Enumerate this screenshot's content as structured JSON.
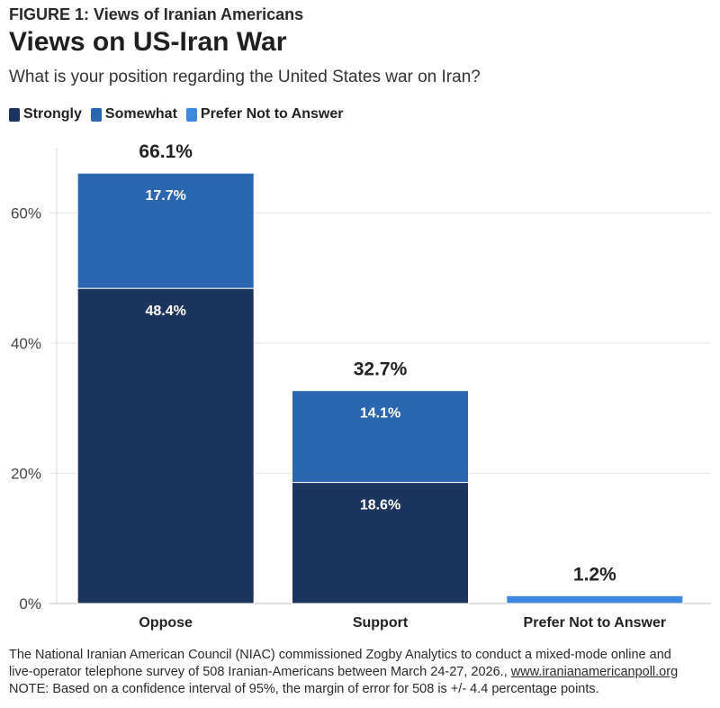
{
  "figure_label": "FIGURE 1: Views of Iranian Americans",
  "chart_data": {
    "type": "bar",
    "stacked": true,
    "title": "Views on US-Iran War",
    "subtitle": "What is your position regarding the United States war on Iran?",
    "categories": [
      "Oppose",
      "Support",
      "Prefer Not to Answer"
    ],
    "series": [
      {
        "name": "Strongly",
        "color": "#1c355e",
        "values": [
          48.4,
          18.6,
          0
        ],
        "labels": [
          "48.4%",
          "18.6%",
          ""
        ]
      },
      {
        "name": "Somewhat",
        "color": "#2b66b0",
        "values": [
          17.7,
          14.1,
          0
        ],
        "labels": [
          "17.7%",
          "14.1%",
          ""
        ]
      },
      {
        "name": "Prefer Not to Answer",
        "color": "#3f88e0",
        "values": [
          0,
          0,
          1.2
        ],
        "labels": [
          "",
          "",
          ""
        ]
      }
    ],
    "totals": [
      66.1,
      32.7,
      1.2
    ],
    "total_labels": [
      "66.1%",
      "32.7%",
      "1.2%"
    ],
    "ylim": [
      0,
      70
    ],
    "yticks": [
      0,
      20,
      40,
      60
    ],
    "ytick_labels": [
      "0%",
      "20%",
      "40%",
      "60%"
    ],
    "xlabel": "",
    "ylabel": "",
    "grid": true,
    "legend_position": "top-left"
  },
  "footer": {
    "line1": "The National Iranian American Council (NIAC) commissioned Zogby Analytics to conduct a mixed-mode online and",
    "line2": "live-operator telephone survey of 508 Iranian-Americans between March 24-27, 2026.,",
    "link": "www.iranianamericanpoll.org",
    "line3": "NOTE: Based on a confidence interval of 95%, the margin of error for 508 is +/- 4.4 percentage points."
  }
}
